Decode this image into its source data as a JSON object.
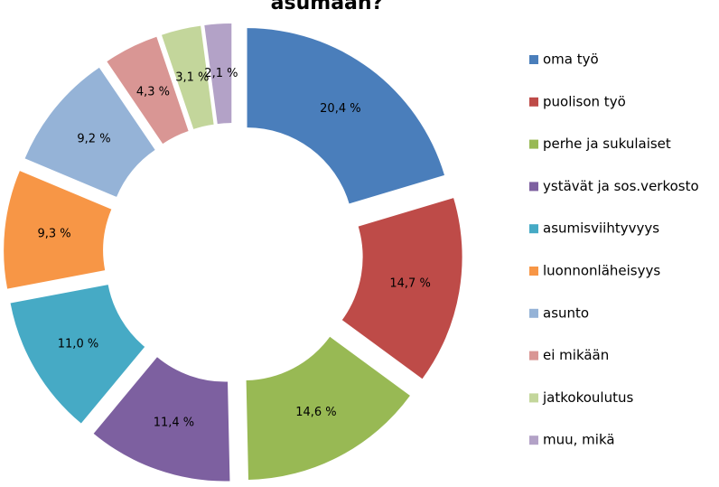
{
  "chart_data": {
    "type": "donut",
    "title": "asumaan?",
    "categories": [
      "oma työ",
      "puolison työ",
      "perhe ja sukulaiset",
      "ystävät ja sos.verkosto",
      "asumisviihtyvyys",
      "luonnonläheisyys",
      "asunto",
      "ei mikään",
      "jatkokoulutus",
      "muu, mikä"
    ],
    "values": [
      20.4,
      14.7,
      14.6,
      11.4,
      11.0,
      9.3,
      9.2,
      4.3,
      3.1,
      2.1
    ],
    "value_labels": [
      "20,4 %",
      "14,7 %",
      "14,6 %",
      "11,4 %",
      "11,0 %",
      "9,3 %",
      "9,2 %",
      "4,3 %",
      "3,1 %",
      "2,1 %"
    ],
    "colors": [
      "#4a7ebb",
      "#be4b48",
      "#98b954",
      "#7d60a0",
      "#46aac5",
      "#f79646",
      "#95b3d7",
      "#d99694",
      "#c3d69b",
      "#b3a2c7"
    ],
    "legend": "right"
  }
}
